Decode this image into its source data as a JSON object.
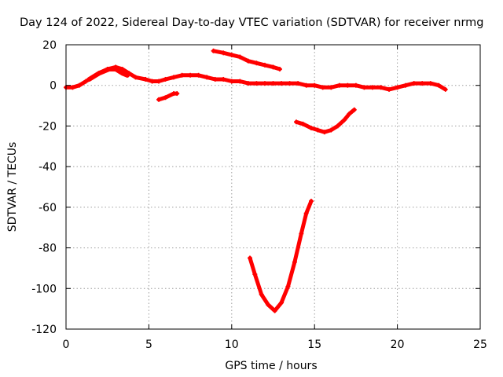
{
  "chart_data": {
    "type": "scatter",
    "title": "Day 124 of 2022, Sidereal Day-to-day VTEC variation (SDTVAR) for receiver nrmg",
    "xlabel": "GPS time / hours",
    "ylabel": "SDTVAR / TECUs",
    "xlim": [
      0,
      25
    ],
    "ylim": [
      -120,
      20
    ],
    "xticks": [
      0,
      5,
      10,
      15,
      20,
      25
    ],
    "yticks": [
      -120,
      -100,
      -80,
      -60,
      -40,
      -20,
      0,
      20
    ],
    "grid": true,
    "series_color": "#ff0000",
    "series": [
      {
        "name": "main-track",
        "width": 5,
        "points": [
          [
            0,
            -1
          ],
          [
            0.4,
            -1
          ],
          [
            0.8,
            0
          ],
          [
            1.2,
            2
          ],
          [
            1.6,
            4
          ],
          [
            2.0,
            6
          ],
          [
            2.5,
            8
          ],
          [
            3.0,
            9
          ],
          [
            3.4,
            8
          ],
          [
            3.8,
            6
          ],
          [
            4.2,
            4
          ],
          [
            4.8,
            3
          ],
          [
            5.2,
            2
          ],
          [
            5.6,
            2
          ],
          [
            6.0,
            3
          ],
          [
            6.5,
            4
          ],
          [
            7.0,
            5
          ],
          [
            7.5,
            5
          ],
          [
            8.0,
            5
          ],
          [
            8.5,
            4
          ],
          [
            9.0,
            3
          ],
          [
            9.5,
            3
          ],
          [
            10.0,
            2
          ],
          [
            10.5,
            2
          ],
          [
            11.0,
            1
          ],
          [
            11.5,
            1
          ],
          [
            12.0,
            1
          ],
          [
            12.5,
            1
          ],
          [
            13.0,
            1
          ],
          [
            13.5,
            1
          ],
          [
            14.0,
            1
          ],
          [
            14.5,
            0
          ],
          [
            15.0,
            0
          ],
          [
            15.5,
            -1
          ],
          [
            16.0,
            -1
          ],
          [
            16.5,
            0
          ],
          [
            17.0,
            0
          ],
          [
            17.5,
            0
          ],
          [
            18.0,
            -1
          ],
          [
            18.5,
            -1
          ],
          [
            19.0,
            -1
          ],
          [
            19.5,
            -2
          ],
          [
            20.0,
            -1
          ],
          [
            20.5,
            0
          ],
          [
            21.0,
            1
          ],
          [
            21.5,
            1
          ],
          [
            22.0,
            1
          ],
          [
            22.5,
            0
          ],
          [
            22.9,
            -2
          ]
        ]
      },
      {
        "name": "hump-band",
        "width": 6,
        "points": [
          [
            1.4,
            3
          ],
          [
            2.0,
            6
          ],
          [
            2.6,
            8
          ],
          [
            3.0,
            8
          ],
          [
            3.4,
            6
          ],
          [
            3.7,
            5
          ]
        ]
      },
      {
        "name": "short-segment",
        "width": 5,
        "points": [
          [
            5.6,
            -7
          ],
          [
            6.0,
            -6
          ],
          [
            6.5,
            -4
          ],
          [
            6.7,
            -4
          ]
        ]
      },
      {
        "name": "upper-segment",
        "width": 5,
        "points": [
          [
            8.9,
            17
          ],
          [
            9.5,
            16
          ],
          [
            10.0,
            15
          ],
          [
            10.5,
            14
          ],
          [
            11.0,
            12
          ],
          [
            11.5,
            11
          ],
          [
            12.0,
            10
          ],
          [
            12.5,
            9
          ],
          [
            12.9,
            8
          ]
        ]
      },
      {
        "name": "dip-arc",
        "width": 5,
        "points": [
          [
            13.9,
            -18
          ],
          [
            14.3,
            -19
          ],
          [
            14.8,
            -21
          ],
          [
            15.2,
            -22
          ],
          [
            15.6,
            -23
          ],
          [
            16.0,
            -22
          ],
          [
            16.4,
            -20
          ],
          [
            16.8,
            -17
          ],
          [
            17.1,
            -14
          ],
          [
            17.4,
            -12
          ]
        ]
      },
      {
        "name": "deep-v",
        "width": 5,
        "points": [
          [
            11.1,
            -85
          ],
          [
            11.4,
            -93
          ],
          [
            11.8,
            -103
          ],
          [
            12.2,
            -108
          ],
          [
            12.6,
            -111
          ],
          [
            13.0,
            -107
          ],
          [
            13.4,
            -99
          ],
          [
            13.8,
            -87
          ],
          [
            14.2,
            -73
          ],
          [
            14.5,
            -63
          ],
          [
            14.8,
            -57
          ]
        ]
      }
    ]
  }
}
